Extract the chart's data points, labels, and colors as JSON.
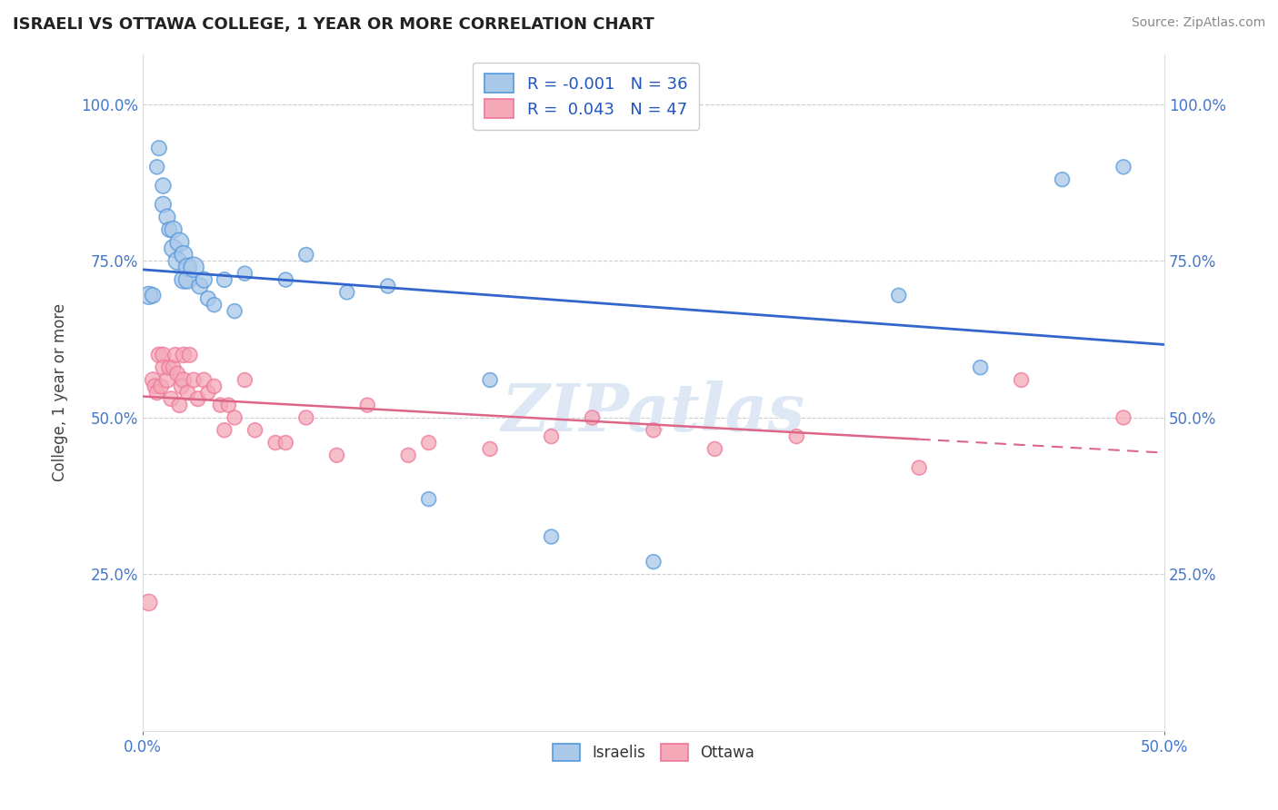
{
  "title": "ISRAELI VS OTTAWA COLLEGE, 1 YEAR OR MORE CORRELATION CHART",
  "source_text": "Source: ZipAtlas.com",
  "ylabel": "College, 1 year or more",
  "xlim": [
    0.0,
    0.5
  ],
  "ylim": [
    0.0,
    1.08
  ],
  "ytick_values": [
    0.25,
    0.5,
    0.75,
    1.0
  ],
  "ytick_labels": [
    "25.0%",
    "50.0%",
    "75.0%",
    "100.0%"
  ],
  "xtick_values": [
    0.0,
    0.5
  ],
  "xtick_labels": [
    "0.0%",
    "50.0%"
  ],
  "israelis_color": "#aac8e8",
  "ottawa_color": "#f4a8b8",
  "israelis_edge_color": "#5599dd",
  "ottawa_edge_color": "#ee7799",
  "israelis_line_color": "#3366cc",
  "ottawa_line_color": "#dd6688",
  "tick_label_color": "#4477cc",
  "background_color": "#ffffff",
  "grid_color": "#cccccc",
  "watermark_text": "ZIPatlas",
  "watermark_color": "#dde8f4",
  "legend_r_israelis": "R = -0.001",
  "legend_n_israelis": "N = 36",
  "legend_r_ottawa": "R =  0.043",
  "legend_n_ottawa": "N = 47",
  "israelis_x": [
    0.003,
    0.005,
    0.007,
    0.008,
    0.01,
    0.01,
    0.012,
    0.013,
    0.015,
    0.015,
    0.017,
    0.018,
    0.02,
    0.02,
    0.022,
    0.022,
    0.025,
    0.028,
    0.03,
    0.032,
    0.035,
    0.04,
    0.045,
    0.05,
    0.07,
    0.08,
    0.1,
    0.12,
    0.14,
    0.17,
    0.2,
    0.25,
    0.37,
    0.41,
    0.45,
    0.48
  ],
  "israelis_y": [
    0.695,
    0.695,
    0.9,
    0.93,
    0.84,
    0.87,
    0.82,
    0.8,
    0.77,
    0.8,
    0.75,
    0.78,
    0.72,
    0.76,
    0.74,
    0.72,
    0.74,
    0.71,
    0.72,
    0.69,
    0.68,
    0.72,
    0.67,
    0.73,
    0.72,
    0.76,
    0.7,
    0.71,
    0.37,
    0.56,
    0.31,
    0.27,
    0.695,
    0.58,
    0.88,
    0.9
  ],
  "israelis_sizes": [
    200,
    150,
    130,
    140,
    160,
    150,
    160,
    140,
    200,
    180,
    200,
    220,
    200,
    200,
    200,
    200,
    250,
    160,
    160,
    140,
    130,
    140,
    130,
    130,
    130,
    130,
    130,
    130,
    130,
    130,
    130,
    130,
    130,
    130,
    130,
    130
  ],
  "ottawa_x": [
    0.003,
    0.005,
    0.006,
    0.007,
    0.008,
    0.009,
    0.01,
    0.01,
    0.012,
    0.013,
    0.014,
    0.015,
    0.016,
    0.017,
    0.018,
    0.019,
    0.02,
    0.02,
    0.022,
    0.023,
    0.025,
    0.027,
    0.03,
    0.032,
    0.035,
    0.038,
    0.04,
    0.042,
    0.045,
    0.05,
    0.055,
    0.065,
    0.07,
    0.08,
    0.095,
    0.11,
    0.13,
    0.14,
    0.17,
    0.2,
    0.22,
    0.25,
    0.28,
    0.32,
    0.38,
    0.43,
    0.48
  ],
  "ottawa_y": [
    0.205,
    0.56,
    0.55,
    0.54,
    0.6,
    0.55,
    0.6,
    0.58,
    0.56,
    0.58,
    0.53,
    0.58,
    0.6,
    0.57,
    0.52,
    0.55,
    0.56,
    0.6,
    0.54,
    0.6,
    0.56,
    0.53,
    0.56,
    0.54,
    0.55,
    0.52,
    0.48,
    0.52,
    0.5,
    0.56,
    0.48,
    0.46,
    0.46,
    0.5,
    0.44,
    0.52,
    0.44,
    0.46,
    0.45,
    0.47,
    0.5,
    0.48,
    0.45,
    0.47,
    0.42,
    0.56,
    0.5
  ],
  "ottawa_sizes": [
    170,
    150,
    140,
    140,
    150,
    140,
    150,
    140,
    150,
    140,
    140,
    140,
    140,
    140,
    140,
    140,
    150,
    150,
    140,
    140,
    140,
    140,
    140,
    130,
    130,
    130,
    130,
    130,
    130,
    130,
    130,
    130,
    130,
    130,
    130,
    130,
    130,
    130,
    130,
    130,
    130,
    130,
    130,
    130,
    130,
    130,
    130
  ]
}
